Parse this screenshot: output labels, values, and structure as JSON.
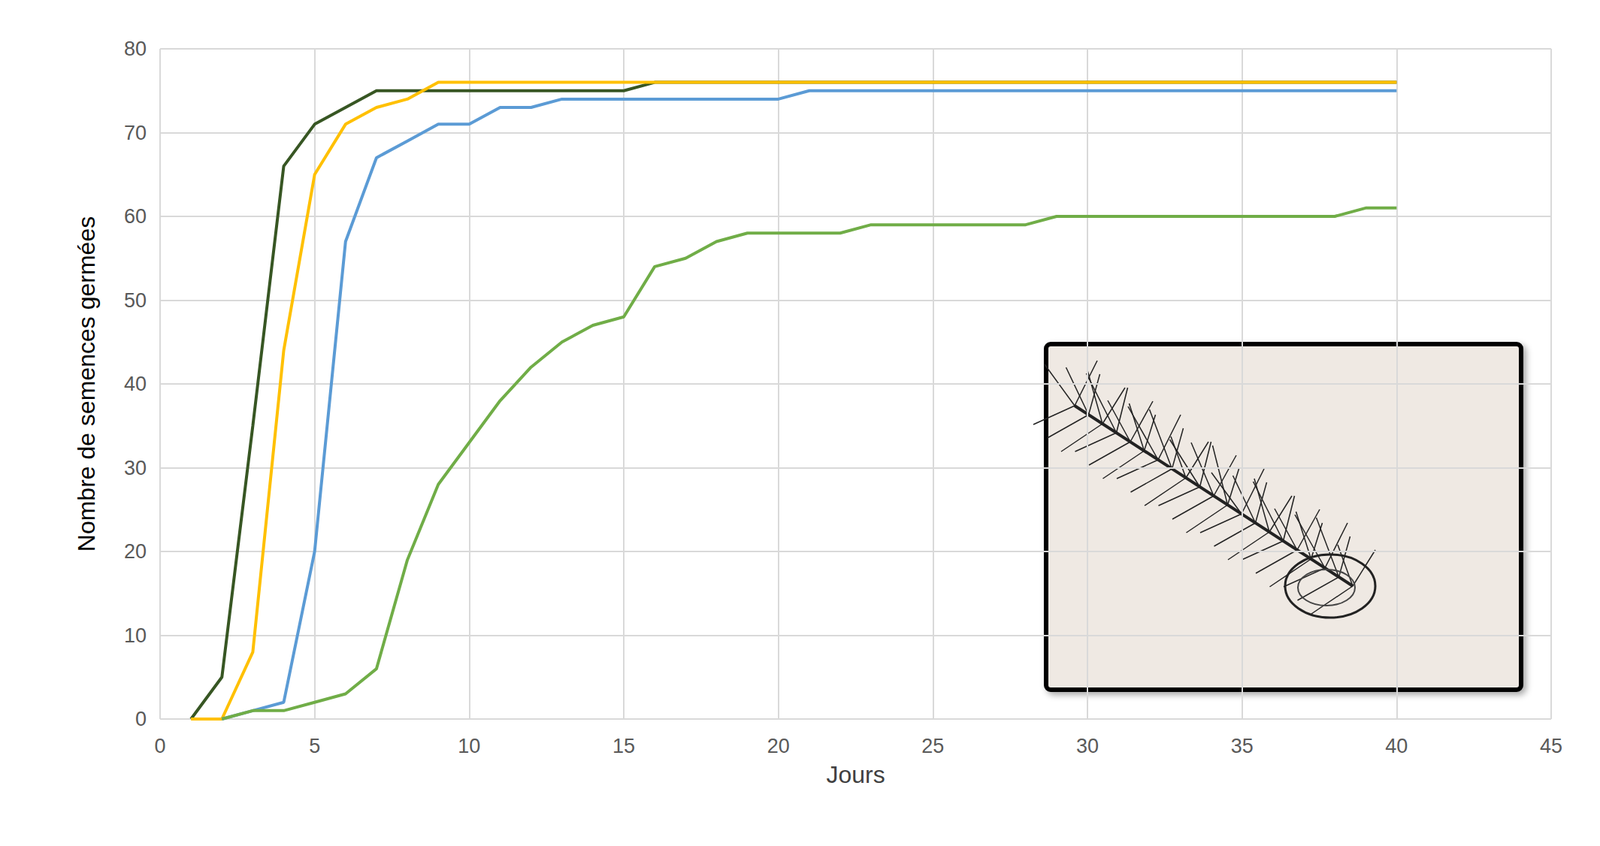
{
  "chart_data": {
    "type": "line",
    "x_label": "Jours",
    "y_label": "Nombre de semences germées",
    "x": [
      1,
      2,
      3,
      4,
      5,
      6,
      7,
      8,
      9,
      10,
      11,
      12,
      13,
      14,
      15,
      16,
      17,
      18,
      19,
      20,
      21,
      22,
      23,
      24,
      25,
      26,
      27,
      28,
      29,
      30,
      31,
      32,
      33,
      34,
      35,
      36,
      37,
      38,
      39,
      40
    ],
    "series": [
      {
        "color": "#375623",
        "values": [
          0,
          5,
          35,
          66,
          71,
          73,
          75,
          75,
          75,
          75,
          75,
          75,
          75,
          75,
          75,
          76,
          76,
          76,
          76,
          76,
          76,
          76,
          76,
          76,
          76,
          76,
          76,
          76,
          76,
          76,
          76,
          76,
          76,
          76,
          76,
          76,
          76,
          76,
          76,
          76
        ]
      },
      {
        "color": "#ffc000",
        "values": [
          0,
          0,
          8,
          44,
          65,
          71,
          73,
          74,
          76,
          76,
          76,
          76,
          76,
          76,
          76,
          76,
          76,
          76,
          76,
          76,
          76,
          76,
          76,
          76,
          76,
          76,
          76,
          76,
          76,
          76,
          76,
          76,
          76,
          76,
          76,
          76,
          76,
          76,
          76,
          76
        ]
      },
      {
        "color": "#5b9bd5",
        "values": [
          null,
          0,
          1,
          2,
          20,
          57,
          67,
          69,
          71,
          71,
          73,
          73,
          74,
          74,
          74,
          74,
          74,
          74,
          74,
          74,
          75,
          75,
          75,
          75,
          75,
          75,
          75,
          75,
          75,
          75,
          75,
          75,
          75,
          75,
          75,
          75,
          75,
          75,
          75,
          75
        ]
      },
      {
        "color": "#70ad47",
        "values": [
          null,
          0,
          1,
          1,
          2,
          3,
          6,
          19,
          28,
          33,
          38,
          42,
          45,
          47,
          48,
          54,
          55,
          57,
          58,
          58,
          58,
          58,
          59,
          59,
          59,
          59,
          59,
          59,
          60,
          60,
          60,
          60,
          60,
          60,
          60,
          60,
          60,
          60,
          61,
          61
        ]
      }
    ],
    "xlim": [
      0,
      45
    ],
    "xticks": [
      0,
      5,
      10,
      15,
      20,
      25,
      30,
      35,
      40,
      45
    ],
    "ylim": [
      0,
      80
    ],
    "yticks": [
      0,
      10,
      20,
      30,
      40,
      50,
      60,
      70,
      80
    ],
    "grid": true
  }
}
